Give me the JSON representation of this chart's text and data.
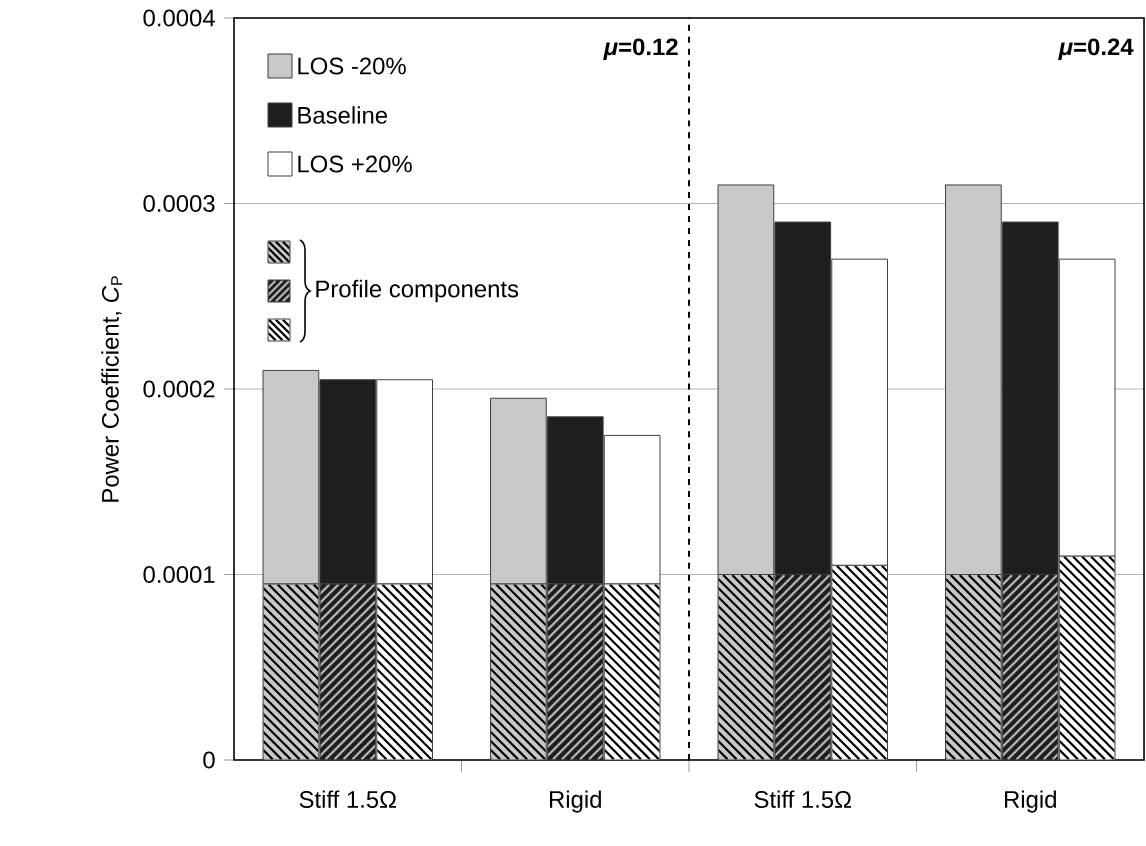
{
  "chart_data": {
    "type": "bar",
    "stacked": true,
    "ylabel": "Power Coefficient, *C*$_{P}$",
    "categories": [
      null,
      "Stiff 1.5Ω",
      null,
      null,
      null,
      "Rigid",
      null,
      null,
      null,
      "Stiff 1.5Ω",
      null,
      null,
      null,
      "Rigid",
      null
    ],
    "series": [
      {
        "color": "#c8c8c8",
        "values": [
          9.5e-05,
          null,
          null,
          null,
          9.5e-05,
          null,
          null,
          null,
          0.0001,
          null,
          null,
          null,
          0.0001,
          null,
          null
        ]
      },
      {
        "name": "LOS -20%",
        "color": "#c8c8c8",
        "values": [
          0.000115,
          null,
          null,
          null,
          0.0001,
          null,
          null,
          null,
          0.00021,
          null,
          null,
          null,
          0.00021,
          null,
          null
        ]
      },
      {
        "color": "#1e1e1e",
        "values": [
          null,
          9.5e-05,
          null,
          null,
          null,
          9.5e-05,
          null,
          null,
          null,
          0.0001,
          null,
          null,
          null,
          0.0001,
          null
        ]
      },
      {
        "name": "Baseline",
        "color": "#1e1e1e",
        "values": [
          null,
          0.00011,
          null,
          null,
          null,
          9e-05,
          null,
          null,
          null,
          0.00019,
          null,
          null,
          null,
          0.00019,
          null
        ]
      },
      {
        "color": "#ffffff",
        "values": [
          null,
          null,
          9.5e-05,
          null,
          null,
          null,
          9.5e-05,
          null,
          null,
          null,
          0.000105,
          null,
          null,
          null,
          0.00011
        ]
      },
      {
        "name": "LOS +20%",
        "color": "#ffffff",
        "values": [
          null,
          null,
          0.00011,
          null,
          null,
          null,
          8e-05,
          null,
          null,
          null,
          0.000165,
          null,
          null,
          null,
          0.00016
        ]
      }
    ],
    "ylim": [
      0,
      0.0004
    ],
    "yticks": [
      0,
      0.0001,
      0.0002,
      0.0003,
      0.0004
    ],
    "grid": "y",
    "legend": "top left",
    "annotations": [
      "Profile components",
      "*μ*=0.12",
      "*μ*=0.24"
    ]
  }
}
